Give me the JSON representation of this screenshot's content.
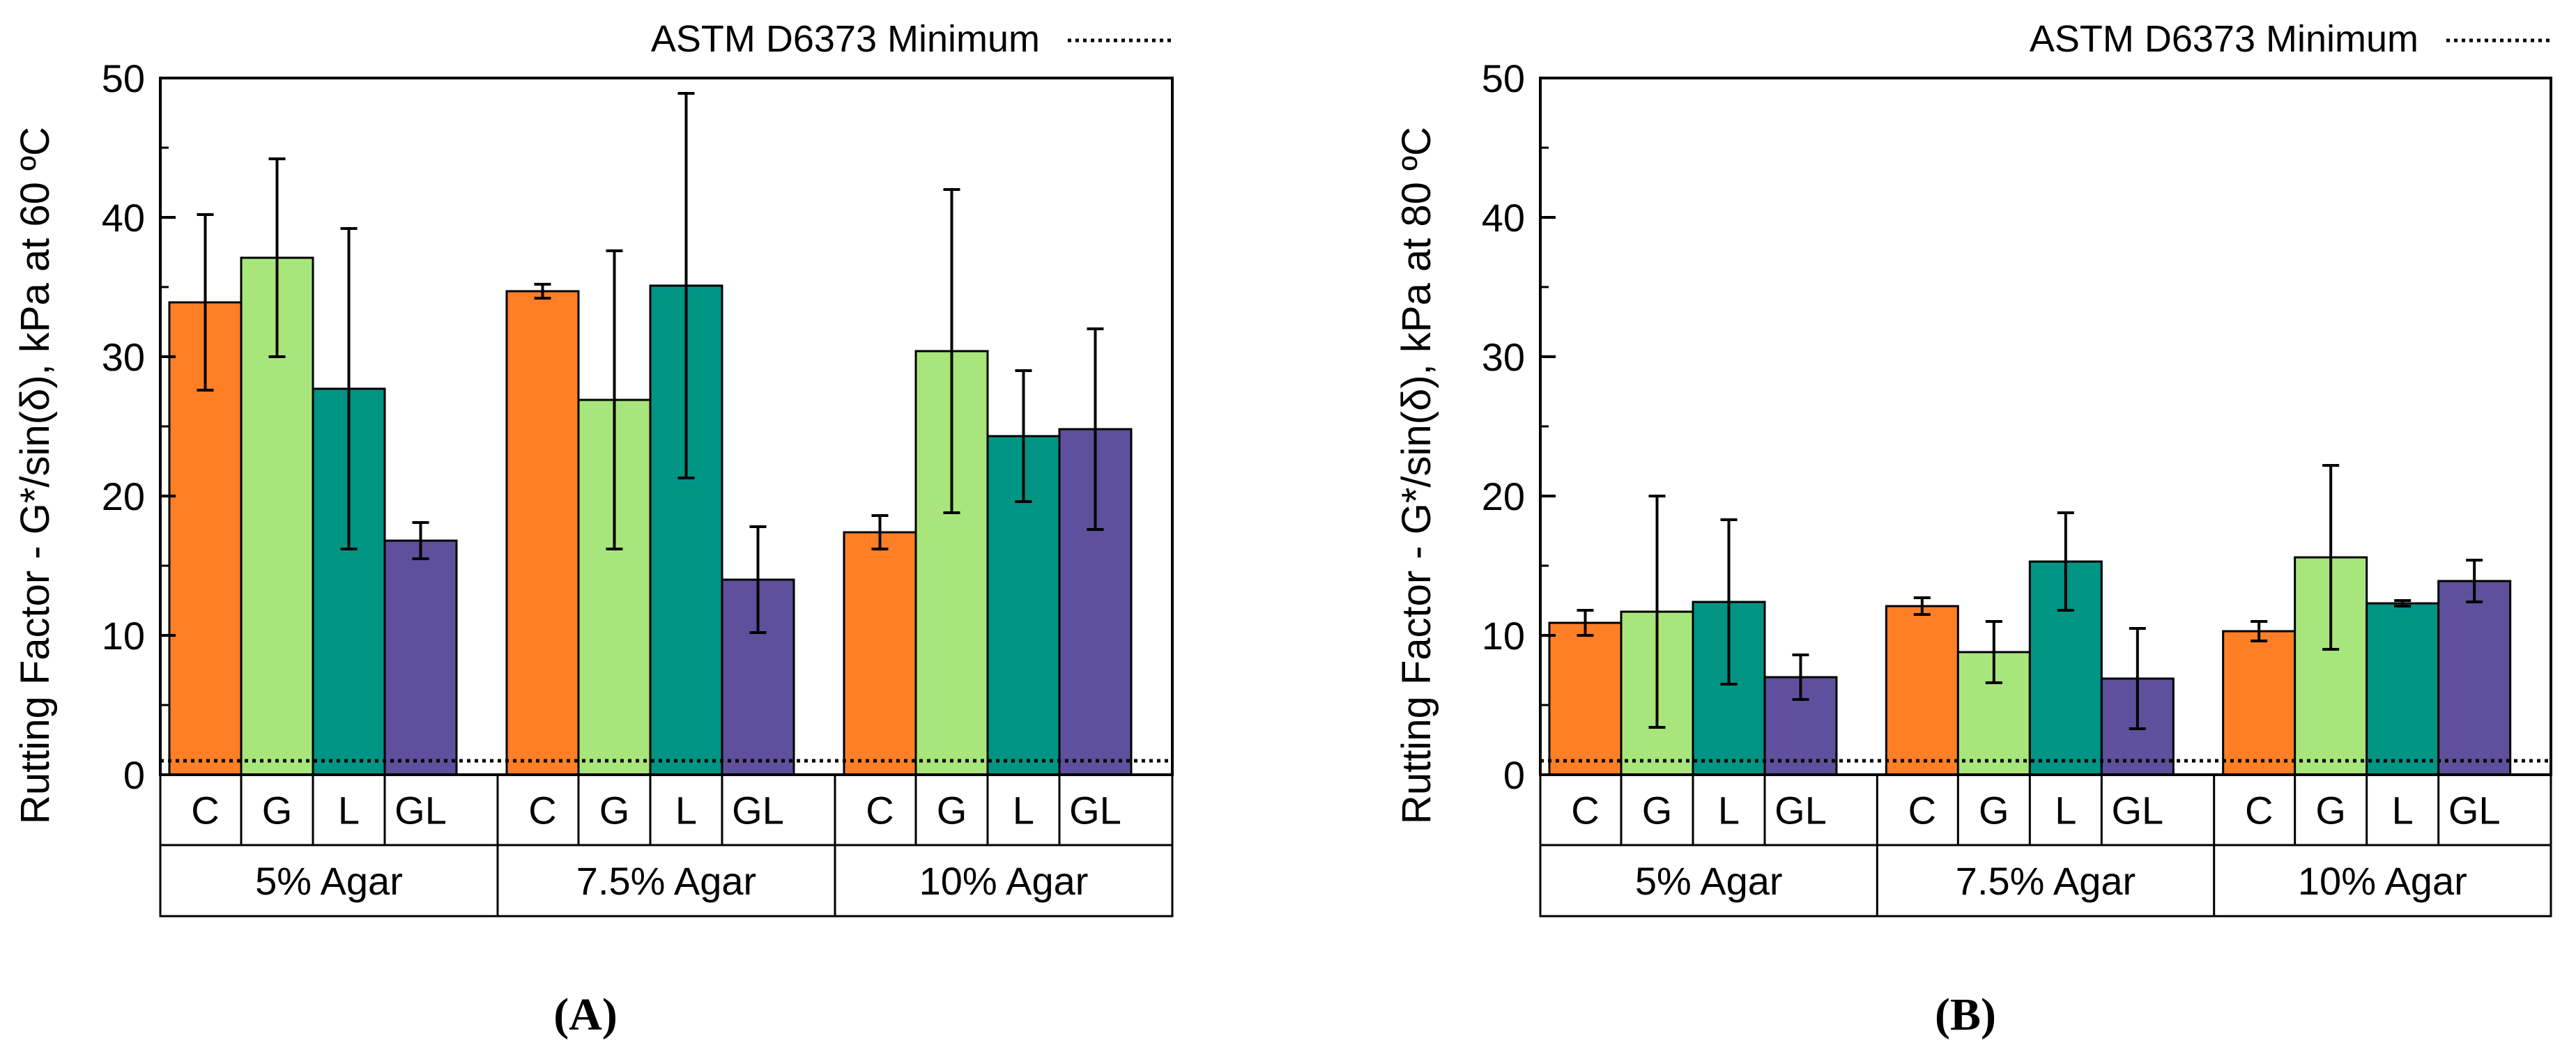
{
  "chart_data": [
    {
      "type": "bar",
      "panel_label": "(A)",
      "ylabel": "Rutting Factor - G*/sin(δ), kPa at 60 ºC",
      "ylim": [
        0,
        50
      ],
      "yticks": [
        "0",
        "10",
        "20",
        "30",
        "40",
        "50"
      ],
      "reference_line": {
        "value": 1.0,
        "label": "ASTM D6373 Minimum",
        "style": "dotted",
        "legend": "top-right"
      },
      "groups": [
        {
          "label": "5% Agar",
          "categories": [
            "C",
            "G",
            "L",
            "GL"
          ],
          "values": [
            33.9,
            37.1,
            27.7,
            16.8
          ],
          "errors": [
            6.3,
            7.1,
            11.5,
            1.3
          ]
        },
        {
          "label": "7.5% Agar",
          "categories": [
            "C",
            "G",
            "L",
            "GL"
          ],
          "values": [
            34.7,
            26.9,
            35.1,
            14.0
          ],
          "errors": [
            0.5,
            10.7,
            13.8,
            3.8
          ]
        },
        {
          "label": "10% Agar",
          "categories": [
            "C",
            "G",
            "L",
            "GL"
          ],
          "values": [
            17.4,
            30.4,
            24.3,
            24.8
          ],
          "errors": [
            1.2,
            11.6,
            4.7,
            7.2
          ]
        }
      ]
    },
    {
      "type": "bar",
      "panel_label": "(B)",
      "ylabel": "Rutting Factor - G*/sin(δ), kPa at 80 ºC",
      "ylim": [
        0,
        50
      ],
      "yticks": [
        "0",
        "10",
        "20",
        "30",
        "40",
        "50"
      ],
      "reference_line": {
        "value": 1.0,
        "label": "ASTM D6373 Minimum",
        "style": "dotted",
        "legend": "top-right"
      },
      "groups": [
        {
          "label": "5% Agar",
          "categories": [
            "C",
            "G",
            "L",
            "GL"
          ],
          "values": [
            10.9,
            11.7,
            12.4,
            7.0
          ],
          "errors": [
            0.9,
            8.3,
            5.9,
            1.6
          ]
        },
        {
          "label": "7.5% Agar",
          "categories": [
            "C",
            "G",
            "L",
            "GL"
          ],
          "values": [
            12.1,
            8.8,
            15.3,
            6.9
          ],
          "errors": [
            0.6,
            2.2,
            3.5,
            3.6
          ]
        },
        {
          "label": "10% Agar",
          "categories": [
            "C",
            "G",
            "L",
            "GL"
          ],
          "values": [
            10.3,
            15.6,
            12.3,
            13.9
          ],
          "errors": [
            0.7,
            6.6,
            0.2,
            1.5
          ]
        }
      ]
    }
  ],
  "colors": {
    "C": "#ff7f27",
    "G": "#a8e67c",
    "L": "#009485",
    "GL": "#5e509c",
    "outline": "#000000"
  }
}
